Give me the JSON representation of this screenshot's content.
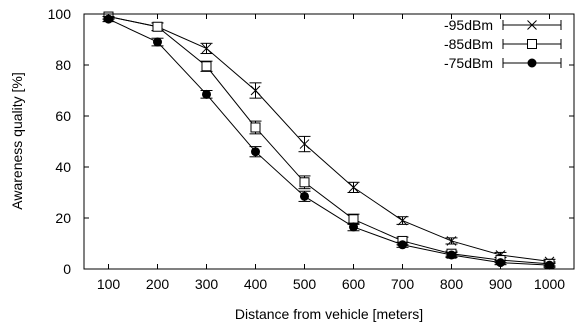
{
  "chart_data": {
    "type": "line",
    "title": "",
    "xlabel": "Distance from vehicle [meters]",
    "ylabel": "Awareness quality [%]",
    "categories": [
      "100",
      "200",
      "300",
      "400",
      "500",
      "600",
      "700",
      "800",
      "900",
      "1000"
    ],
    "x": [
      100,
      200,
      300,
      400,
      500,
      600,
      700,
      800,
      900,
      1000
    ],
    "xlim": [
      50,
      1050
    ],
    "ylim": [
      0,
      100
    ],
    "yticks": [
      "0",
      "20",
      "40",
      "60",
      "80",
      "100"
    ],
    "grid": false,
    "legend_position": "top-right",
    "error_bars": true,
    "series": [
      {
        "name": "-95dBm",
        "marker": "x",
        "values": [
          99,
          95,
          86.5,
          70,
          49,
          32,
          19,
          11,
          5.5,
          3
        ],
        "errors": [
          1.0,
          1.5,
          2.0,
          3.0,
          3.0,
          2.0,
          1.5,
          1.2,
          1.0,
          0.8
        ]
      },
      {
        "name": "-85dBm",
        "marker": "open-square",
        "values": [
          99,
          95,
          79.5,
          55.5,
          34,
          19.5,
          11,
          6,
          3.5,
          2
        ],
        "errors": [
          1.0,
          1.5,
          2.0,
          2.5,
          2.5,
          2.0,
          1.5,
          1.0,
          1.0,
          0.8
        ]
      },
      {
        "name": "-75dBm",
        "marker": "filled-circle",
        "values": [
          98,
          89,
          68.5,
          46,
          28.5,
          16.5,
          9.5,
          5.5,
          2.5,
          1.5
        ],
        "errors": [
          1.0,
          1.5,
          1.5,
          2.0,
          2.0,
          1.5,
          1.0,
          1.0,
          0.8,
          0.8
        ]
      }
    ],
    "colors": {
      "line": "#000000",
      "background": "#ffffff"
    }
  }
}
